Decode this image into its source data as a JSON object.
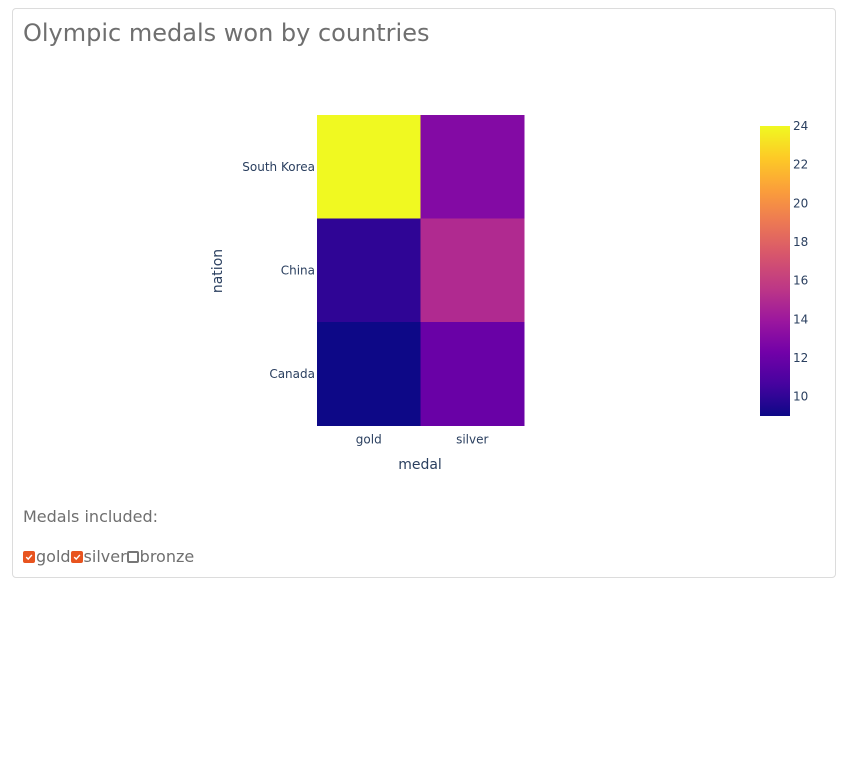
{
  "card": {
    "title": "Olympic medals won by countries"
  },
  "controls": {
    "label": "Medals included:",
    "options": [
      {
        "label": "gold",
        "checked": true
      },
      {
        "label": "silver",
        "checked": true
      },
      {
        "label": "bronze",
        "checked": false
      }
    ]
  },
  "chart_data": {
    "type": "heatmap",
    "title": "",
    "xlabel": "medal",
    "ylabel": "nation",
    "x": [
      "gold",
      "silver"
    ],
    "y": [
      "South Korea",
      "China",
      "Canada"
    ],
    "z": [
      [
        24,
        13
      ],
      [
        10,
        15
      ],
      [
        9,
        12
      ]
    ],
    "colorscale": "plasma",
    "colorbar": {
      "range": [
        9,
        24
      ],
      "ticks": [
        24,
        22,
        20,
        18,
        16,
        14,
        12,
        10
      ]
    },
    "colors": {
      "box_checked": "#e8541f"
    }
  }
}
